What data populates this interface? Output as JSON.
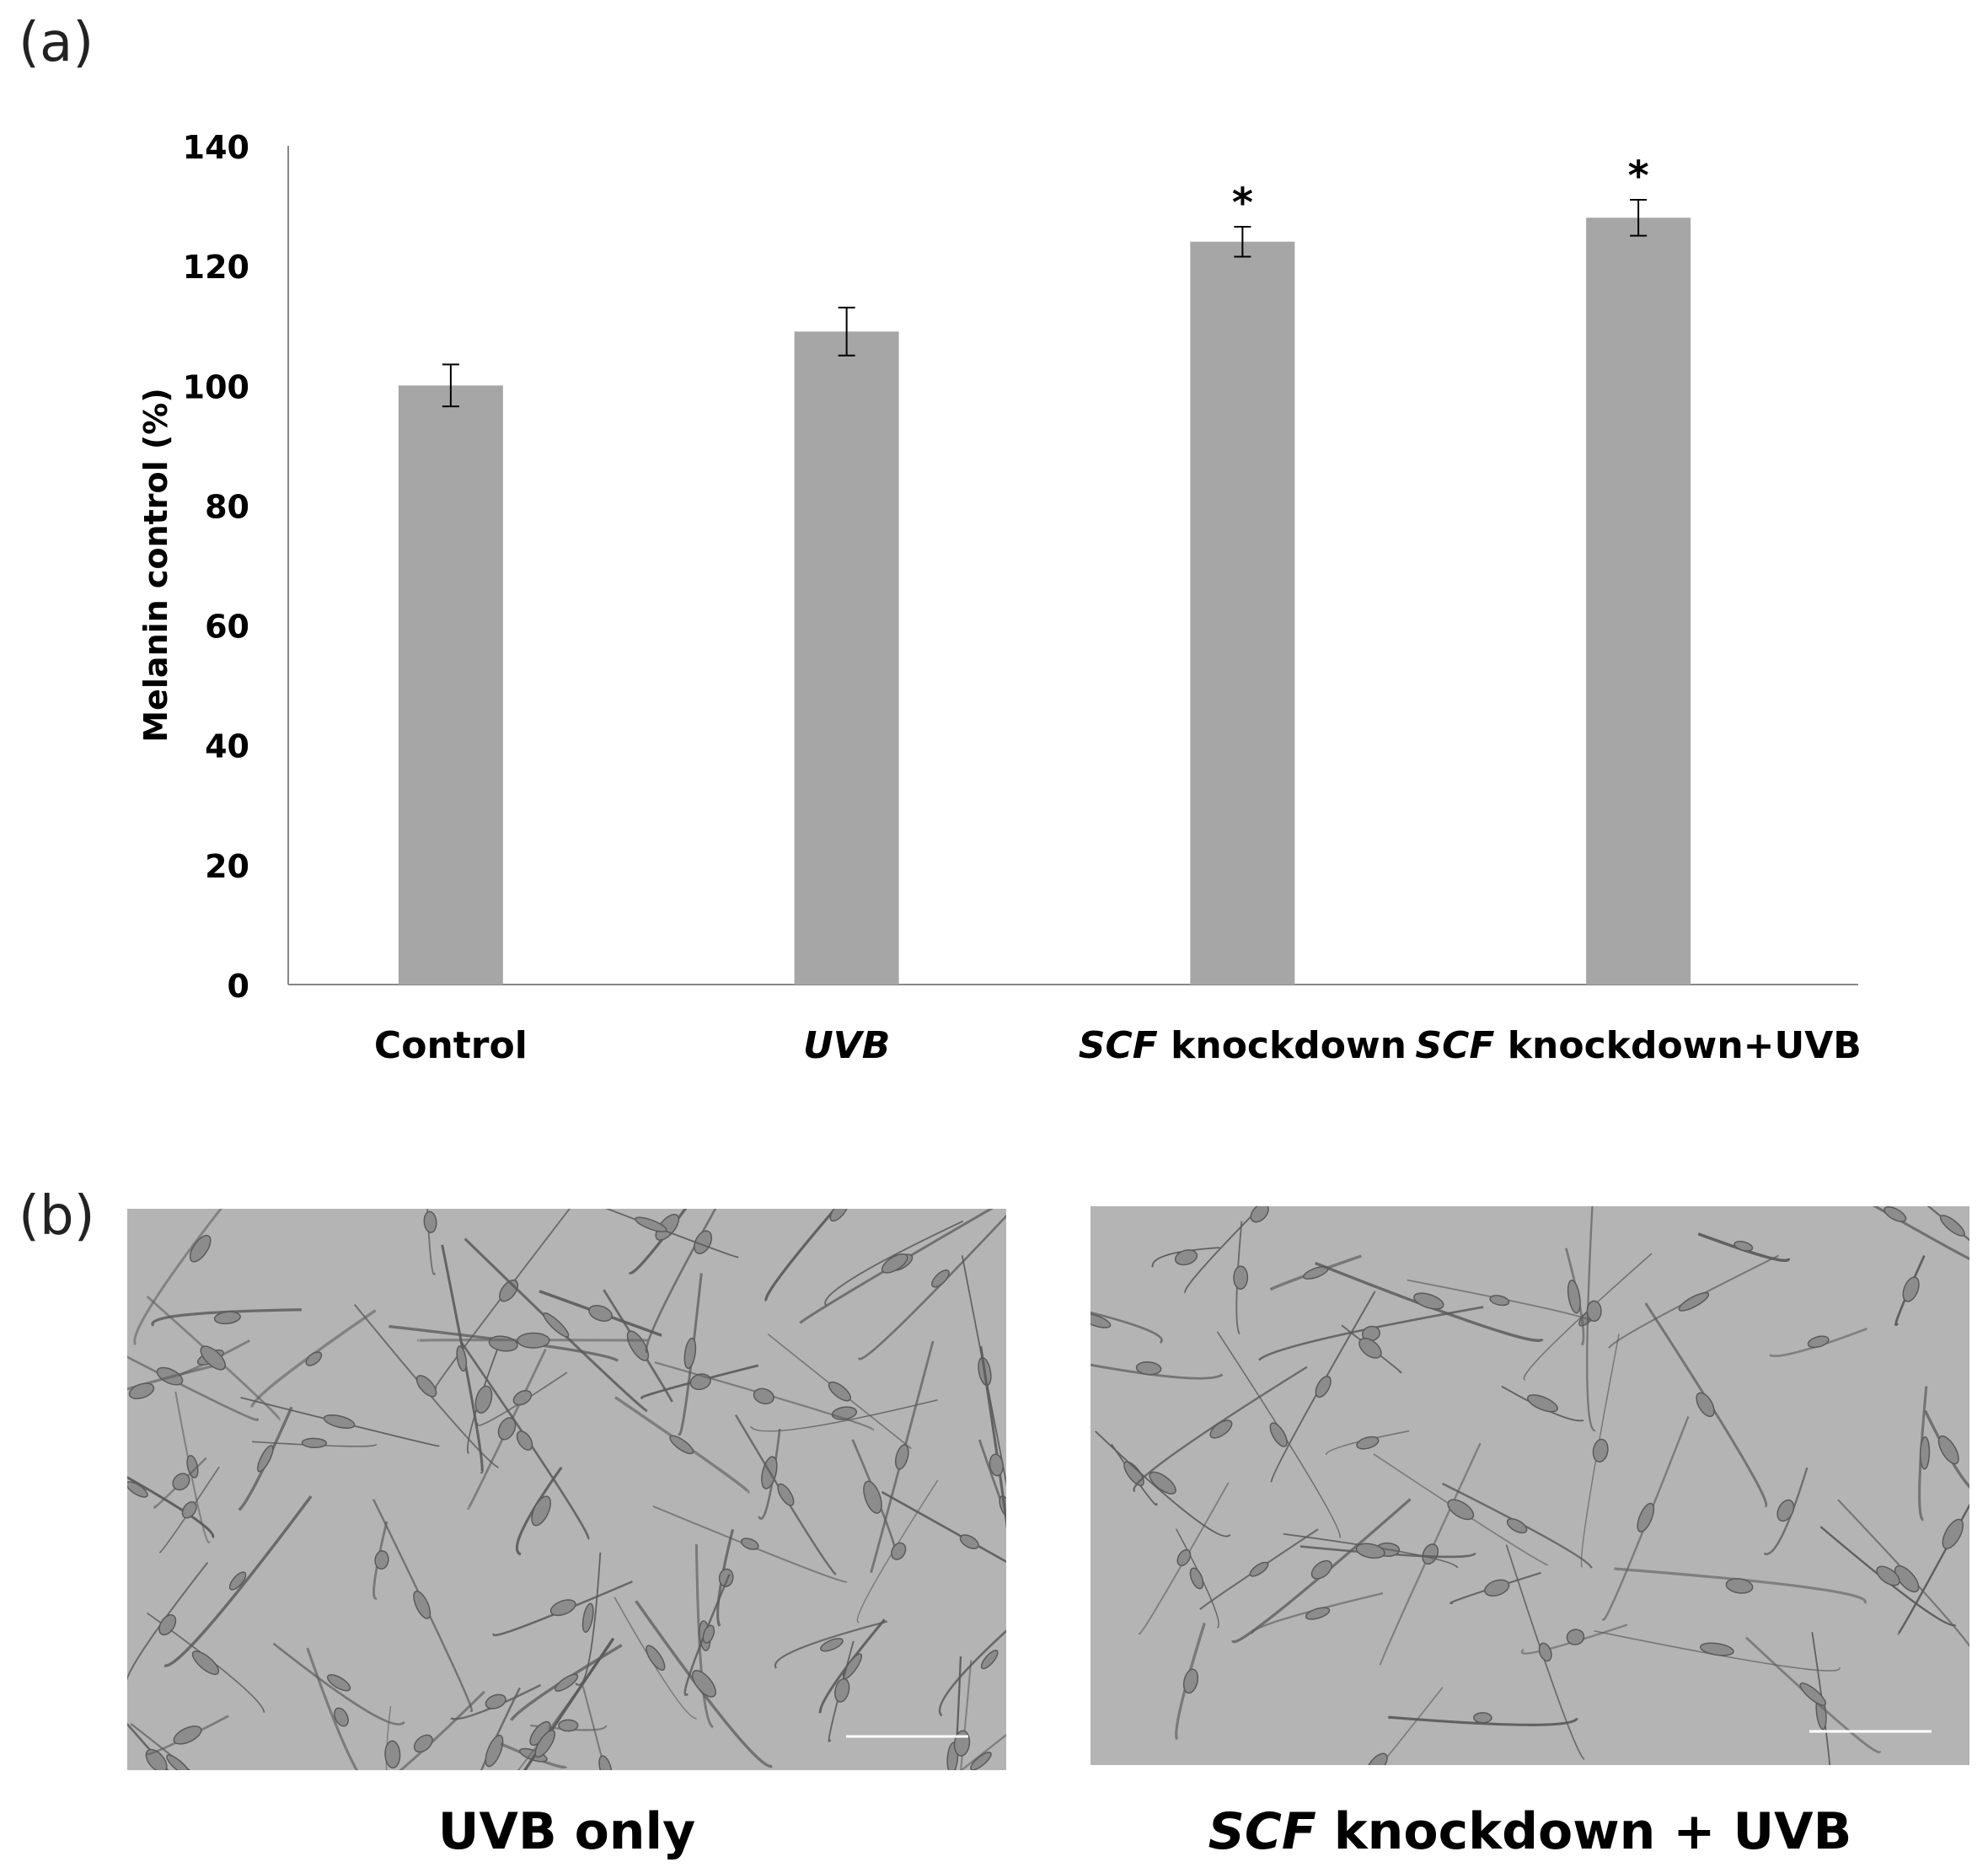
{
  "panel_a_label": "(a)",
  "panel_b_label": "(b)",
  "chart_data": {
    "type": "bar",
    "categories": [
      {
        "label": "Control",
        "italic_prefix": "",
        "rest": "Control",
        "italic_all": false
      },
      {
        "label": "UVB",
        "italic_prefix": "",
        "rest": "UVB",
        "italic_all": true
      },
      {
        "label": "SCF knockdown",
        "italic_prefix": "SCF",
        "rest": " knockdown",
        "italic_all": false
      },
      {
        "label": "SCF knockdown+UVB",
        "italic_prefix": "SCF",
        "rest": " knockdown+UVB",
        "italic_all": false
      }
    ],
    "values": [
      100,
      109,
      124,
      128
    ],
    "errors": [
      3.5,
      4,
      2.5,
      3
    ],
    "significance": [
      "",
      "",
      "*",
      "*"
    ],
    "ylabel": "Melanin control (%)",
    "xlabel": "",
    "ylim": [
      0,
      140
    ],
    "yticks": [
      0,
      20,
      40,
      60,
      80,
      100,
      120,
      140
    ],
    "bar_color": "#a6a6a6",
    "grid": false
  },
  "images": [
    {
      "caption_italic": "",
      "caption_rest": "UVB only"
    },
    {
      "caption_italic": "SCF",
      "caption_rest": " knockdown + UVB"
    }
  ],
  "image_bg_color": "#b4b4b4",
  "cell_color": "#5a5a5a"
}
